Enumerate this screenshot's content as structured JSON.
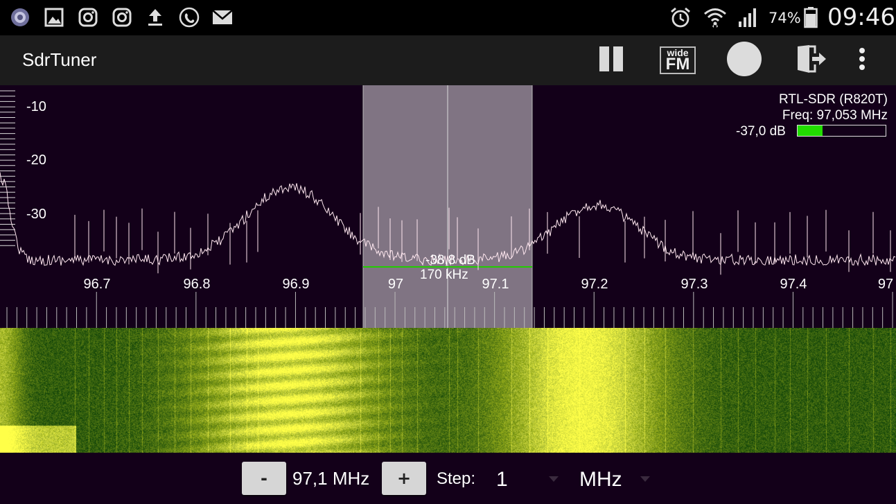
{
  "status_bar": {
    "battery": "74%",
    "time": "09:46",
    "left_icons": [
      "app-badge-icon",
      "gallery-icon",
      "instagram-icon",
      "instagram-icon",
      "upload-icon",
      "call-icon",
      "mail-icon"
    ],
    "right_icons": [
      "alarm-icon",
      "wifi-icon",
      "signal-icon",
      "battery-icon"
    ]
  },
  "app_bar": {
    "title": "SdrTuner",
    "mode_top": "wide",
    "mode_bottom": "FM",
    "icons": [
      "pause-icon",
      "wide-fm-icon",
      "record-icon",
      "exit-icon",
      "more-icon"
    ]
  },
  "spectrum": {
    "db_labels": [
      "-10",
      "-20",
      "-30"
    ],
    "freq_labels": [
      "96.7",
      "96.8",
      "96.9",
      "97",
      "97.1",
      "97.2",
      "97.3",
      "97.4",
      "97"
    ],
    "device": "RTL-SDR (R820T)",
    "freq_readout": "Freq: 97,053 MHz",
    "level": "-37,0 dB",
    "level_fill": 0.28,
    "selection_db": "-38,8 dB",
    "selection_bw": "170 kHz"
  },
  "controls": {
    "minus_label": "-",
    "frequency": "97,1 MHz",
    "plus_label": "+",
    "step_label": "Step:",
    "step_value": "1",
    "unit_value": "MHz"
  },
  "colors": {
    "spectrum_bg": "#130019",
    "selection": "#8a7e8c",
    "level_bar": "#22dd00",
    "waterfall_low": "#1f5a12",
    "waterfall_high": "#ffff40"
  }
}
